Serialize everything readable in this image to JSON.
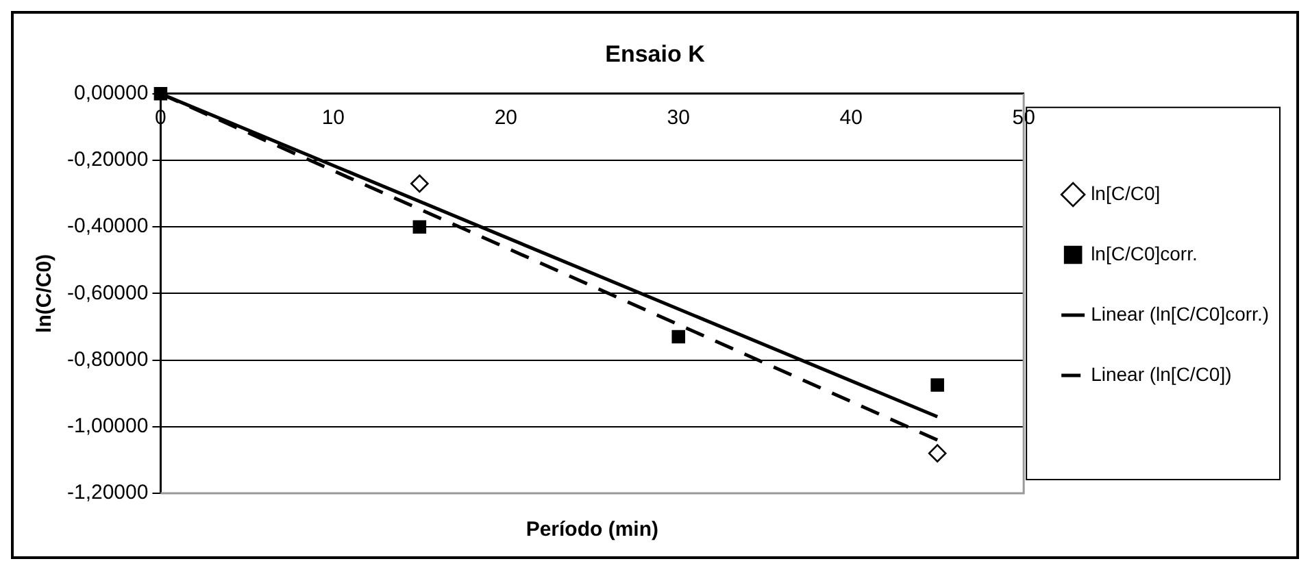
{
  "chart_data": {
    "type": "scatter",
    "title": "Ensaio K",
    "xlabel": "Período (min)",
    "ylabel": "ln(C/C0)",
    "xlim": [
      0,
      50
    ],
    "xticks": [
      0,
      10,
      20,
      30,
      40,
      50
    ],
    "ylim": [
      -1.2,
      0
    ],
    "yticks": [
      {
        "value": 0,
        "label": "0,00000"
      },
      {
        "value": -0.2,
        "label": "-0,20000"
      },
      {
        "value": -0.4,
        "label": "-0,40000"
      },
      {
        "value": -0.6,
        "label": "-0,60000"
      },
      {
        "value": -0.8,
        "label": "-0,80000"
      },
      {
        "value": -1.0,
        "label": "-1,00000"
      },
      {
        "value": -1.2,
        "label": "-1,20000"
      }
    ],
    "grid": "y",
    "legend": "right",
    "series": [
      {
        "name": "ln[C/C0]",
        "marker": "diamond",
        "color": "#000000",
        "x": [
          15,
          45
        ],
        "values": [
          -0.27,
          -1.08
        ]
      },
      {
        "name": "ln[C/C0]corr.",
        "marker": "square",
        "color": "#000000",
        "x": [
          0,
          15,
          30,
          45
        ],
        "values": [
          0,
          -0.4,
          -0.73,
          -0.875
        ]
      },
      {
        "name": "Linear (ln[C/C0]corr.)",
        "type": "line",
        "marker": "none",
        "line_style": "solid",
        "color": "#000000",
        "x": [
          0,
          45
        ],
        "values": [
          0,
          -0.97
        ]
      },
      {
        "name": "Linear (ln[C/C0])",
        "type": "line",
        "marker": "none",
        "line_style": "dashed",
        "color": "#000000",
        "x": [
          0,
          45
        ],
        "values": [
          0,
          -1.04
        ]
      }
    ]
  }
}
